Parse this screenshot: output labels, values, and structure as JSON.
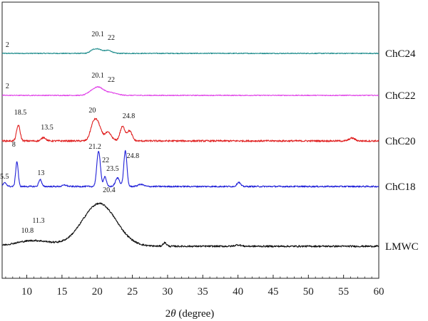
{
  "chart_data": {
    "type": "line",
    "title": "",
    "xlabel_prefix": "2",
    "xlabel_var": "θ",
    "xlabel_suffix": " (degree)",
    "ylabel": "",
    "xlim": [
      6.5,
      60
    ],
    "ticks": [
      10,
      15,
      20,
      25,
      30,
      35,
      40,
      45,
      50,
      55,
      60
    ],
    "tick_labels": [
      "10",
      "15",
      "20",
      "25",
      "30",
      "35",
      "40",
      "45",
      "50",
      "55",
      "60"
    ],
    "grid": false,
    "legend": "inline-right",
    "series": [
      {
        "name": "ChC24",
        "color": "#1a8a8a",
        "base": 0,
        "noise": 0.6,
        "peaks": [
          [
            20.1,
            6,
            0.6
          ],
          [
            21.6,
            4,
            0.5
          ],
          [
            19.3,
            2.5,
            0.4
          ]
        ],
        "annotations": [
          {
            "text": "2",
            "x": 7.0,
            "y": 9
          },
          {
            "text": "20.1",
            "x": 19.2,
            "y": 24
          },
          {
            "text": "22",
            "x": 21.5,
            "y": 19
          }
        ]
      },
      {
        "name": "ChC22",
        "color": "#e040e8",
        "base": 0,
        "noise": 0.6,
        "peaks": [
          [
            20.1,
            11,
            0.7
          ],
          [
            21.8,
            4,
            0.9
          ],
          [
            19.0,
            3,
            0.5
          ]
        ],
        "annotations": [
          {
            "text": "2",
            "x": 7.0,
            "y": 10
          },
          {
            "text": "20.1",
            "x": 19.2,
            "y": 25
          },
          {
            "text": "22",
            "x": 21.5,
            "y": 19
          }
        ]
      },
      {
        "name": "ChC20",
        "color": "#e02020",
        "base": 0,
        "noise": 1.2,
        "peaks": [
          [
            8.8,
            22,
            0.25
          ],
          [
            12.4,
            5,
            0.3
          ],
          [
            19.5,
            25,
            0.45
          ],
          [
            20.2,
            18,
            0.4
          ],
          [
            21.5,
            12,
            0.5
          ],
          [
            23.6,
            20,
            0.35
          ],
          [
            24.6,
            14,
            0.35
          ],
          [
            56.2,
            4,
            0.4
          ]
        ],
        "annotations": [
          {
            "text": "18.5",
            "x": 8.2,
            "y": 37
          },
          {
            "text": "13.5",
            "x": 12.0,
            "y": 16
          },
          {
            "text": "20",
            "x": 18.8,
            "y": 40
          },
          {
            "text": "24.8",
            "x": 23.6,
            "y": 32
          }
        ]
      },
      {
        "name": "ChC18",
        "color": "#2020d8",
        "base": 0,
        "noise": 1.0,
        "peaks": [
          [
            6.9,
            5,
            0.25
          ],
          [
            8.6,
            35,
            0.18
          ],
          [
            11.9,
            10,
            0.2
          ],
          [
            15.4,
            2,
            0.3
          ],
          [
            20.2,
            50,
            0.25
          ],
          [
            21.1,
            14,
            0.2
          ],
          [
            22.9,
            12,
            0.3
          ],
          [
            24.0,
            50,
            0.22
          ],
          [
            26.2,
            3,
            0.4
          ],
          [
            40.1,
            6,
            0.25
          ]
        ],
        "annotations": [
          {
            "text": "5.5",
            "x": 6.2,
            "y": 11
          },
          {
            "text": "8",
            "x": 7.9,
            "y": 56
          },
          {
            "text": "13",
            "x": 11.5,
            "y": 16
          },
          {
            "text": "21.2",
            "x": 18.8,
            "y": 53
          },
          {
            "text": "22",
            "x": 20.7,
            "y": 34
          },
          {
            "text": "23.5",
            "x": 21.3,
            "y": 22
          },
          {
            "text": "24.8",
            "x": 24.2,
            "y": 40
          }
        ]
      },
      {
        "name": "LMWC",
        "color": "#111111",
        "base": 0,
        "noise": 1.2,
        "peaks": [
          [
            20.3,
            60,
            2.4
          ],
          [
            11.0,
            8,
            2.5
          ],
          [
            29.6,
            5,
            0.25
          ],
          [
            40.0,
            2,
            0.4
          ]
        ],
        "annotations": [
          {
            "text": "10.8",
            "x": 9.2,
            "y": 19
          },
          {
            "text": "11.3",
            "x": 10.8,
            "y": 33
          },
          {
            "text": "20.4",
            "x": 20.8,
            "y": 76
          }
        ]
      }
    ]
  }
}
